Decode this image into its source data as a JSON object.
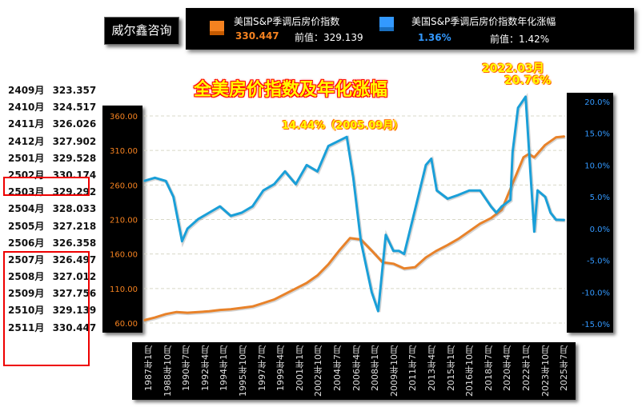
{
  "brand": "威尔鑫咨询",
  "legend": [
    {
      "name": "美国S&P季调后房价指数",
      "value": "330.447",
      "prev_label": "前值：",
      "prev": "329.139",
      "color": "#f58220"
    },
    {
      "name": "美国S&P季调后房价指数年化涨幅",
      "value": "1.36%",
      "prev_label": "前值：",
      "prev": "1.42%",
      "color": "#3399ff"
    }
  ],
  "table": [
    {
      "m": "2409月",
      "v": "323.357"
    },
    {
      "m": "2410月",
      "v": "324.517"
    },
    {
      "m": "2411月",
      "v": "326.026"
    },
    {
      "m": "2412月",
      "v": "327.902"
    },
    {
      "m": "2501月",
      "v": "329.528"
    },
    {
      "m": "2502月",
      "v": "330.174"
    },
    {
      "m": "2503月",
      "v": "329.292"
    },
    {
      "m": "2504月",
      "v": "328.033"
    },
    {
      "m": "2505月",
      "v": "327.218"
    },
    {
      "m": "2506月",
      "v": "326.358"
    },
    {
      "m": "2507月",
      "v": "326.497"
    },
    {
      "m": "2508月",
      "v": "327.012"
    },
    {
      "m": "2509月",
      "v": "327.756"
    },
    {
      "m": "2510月",
      "v": "329.139"
    },
    {
      "m": "2511月",
      "v": "330.447"
    }
  ],
  "chart_data": {
    "type": "line",
    "title": "全美房价指数及年化涨幅",
    "annotations": [
      "14.44%（2005.09月）",
      "2022.03月",
      "20.76%"
    ],
    "y_left": {
      "range": [
        60,
        360
      ],
      "ticks": [
        "60.00",
        "110.00",
        "160.00",
        "210.00",
        "260.00",
        "310.00",
        "360.00"
      ]
    },
    "y_right": {
      "range": [
        -15,
        20
      ],
      "ticks": [
        "-15.0%",
        "-10.0%",
        "-5.0%",
        "0.0%",
        "5.0%",
        "10.0%",
        "15.0%",
        "20.0%"
      ]
    },
    "x_ticks": [
      "1987年1月",
      "1988年10月",
      "1990年7月",
      "1992年4月",
      "1994年1月",
      "1995年10月",
      "1997年7月",
      "1999年4月",
      "2001年1月",
      "2002年10月",
      "2004年7月",
      "2006年4月",
      "2008年1月",
      "2009年10月",
      "2011年7月",
      "2013年4月",
      "2015年1月",
      "2016年10月",
      "2018年7月",
      "2020年4月",
      "2022年1月",
      "2023年10月",
      "2025年7月"
    ],
    "grid": true,
    "series": [
      {
        "name": "美国S&P季调后房价指数",
        "axis": "left",
        "color": "#e8822a",
        "x": [
          1987,
          1988,
          1989,
          1990,
          1991,
          1992,
          1993,
          1994,
          1995,
          1996,
          1997,
          1998,
          1999,
          2000,
          2001,
          2002,
          2003,
          2004,
          2005,
          2006,
          2007,
          2008,
          2009,
          2010,
          2011,
          2012,
          2013,
          2014,
          2015,
          2016,
          2017,
          2018,
          2019,
          2020,
          2021,
          2022,
          2022.5,
          2023,
          2024,
          2025,
          2025.8
        ],
        "y": [
          64,
          68,
          73,
          76,
          75,
          76,
          77,
          79,
          80,
          82,
          84,
          89,
          94,
          102,
          110,
          118,
          129,
          145,
          165,
          183,
          181,
          165,
          148,
          146,
          139,
          141,
          155,
          165,
          173,
          182,
          193,
          204,
          212,
          224,
          262,
          300,
          305,
          300,
          318,
          329,
          330.4
        ]
      },
      {
        "name": "美国S&P季调后房价指数年化涨幅",
        "axis": "right",
        "color": "#1a9fd8",
        "x": [
          1987,
          1988,
          1989,
          1989.7,
          1990.5,
          1991,
          1992,
          1993,
          1994,
          1995,
          1996,
          1997,
          1998,
          1999,
          2000,
          2001,
          2002,
          2003,
          2004,
          2005.7,
          2006.3,
          2007,
          2008,
          2008.6,
          2009.3,
          2010,
          2010.5,
          2011,
          2012,
          2013,
          2013.5,
          2014,
          2015,
          2016,
          2017,
          2018,
          2019,
          2019.5,
          2020,
          2020.8,
          2021,
          2021.5,
          2022.2,
          2022.6,
          2023,
          2023.3,
          2024,
          2024.5,
          2025,
          2025.8
        ],
        "y": [
          7.5,
          8,
          7.5,
          5,
          -2,
          0,
          1.5,
          2.5,
          3.5,
          2,
          2.5,
          3.5,
          6,
          7,
          9,
          7,
          10,
          9,
          13,
          14.44,
          8,
          -2,
          -10,
          -13,
          -1,
          -3.5,
          -3.5,
          -4,
          3,
          10,
          11,
          6,
          4.7,
          5.3,
          6,
          6,
          3.5,
          2.5,
          3.5,
          4.5,
          12,
          19,
          20.76,
          10,
          -0.5,
          6,
          5,
          2.5,
          1.4,
          1.36
        ]
      }
    ]
  }
}
